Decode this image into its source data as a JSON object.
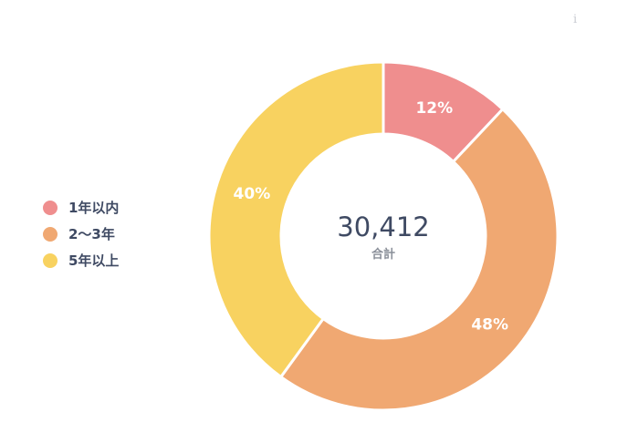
{
  "chart_data": {
    "type": "pie",
    "variant": "donut",
    "categories": [
      "1年以内",
      "2〜3年",
      "5年以上"
    ],
    "values": [
      12,
      48,
      40
    ],
    "labels": [
      "12%",
      "48%",
      "40%"
    ],
    "unit": "%",
    "colors": [
      "#ef8e8e",
      "#f0a872",
      "#f8d260"
    ],
    "center": {
      "total": "30,412",
      "caption": "合計"
    },
    "legend": {
      "position": "left",
      "items": [
        "1年以内",
        "2〜3年",
        "5年以上"
      ]
    }
  },
  "info_icon": {
    "glyph": "i",
    "icon": "info-icon"
  }
}
